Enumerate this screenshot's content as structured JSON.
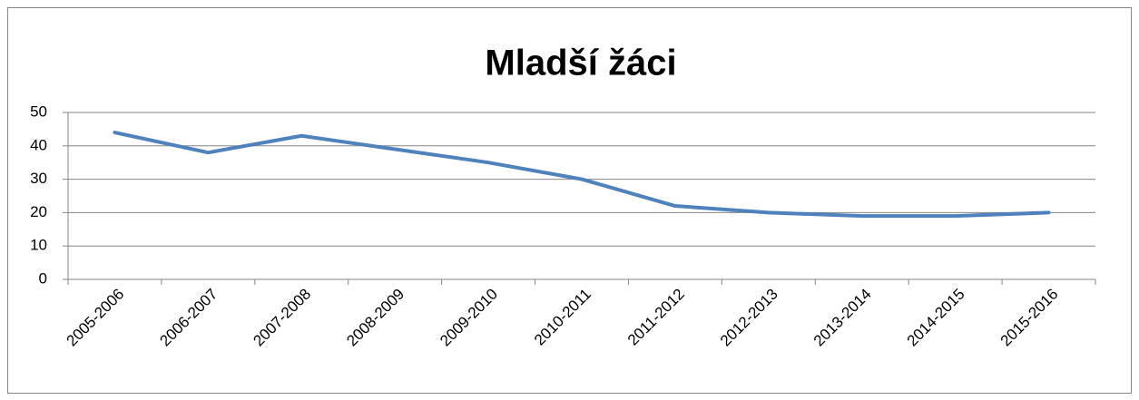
{
  "chart_data": {
    "type": "line",
    "title": "Mladší žáci",
    "categories": [
      "2005-2006",
      "2006-2007",
      "2007-2008",
      "2008-2009",
      "2009-2010",
      "2010-2011",
      "2011-2012",
      "2012-2013",
      "2013-2014",
      "2014-2015",
      "2015-2016"
    ],
    "values": [
      44,
      38,
      43,
      39,
      35,
      30,
      22,
      20,
      19,
      19,
      20
    ],
    "color": "#4f81bd",
    "ylim": [
      0,
      50
    ],
    "yticks": [
      0,
      10,
      20,
      30,
      40,
      50
    ],
    "grid": true
  }
}
